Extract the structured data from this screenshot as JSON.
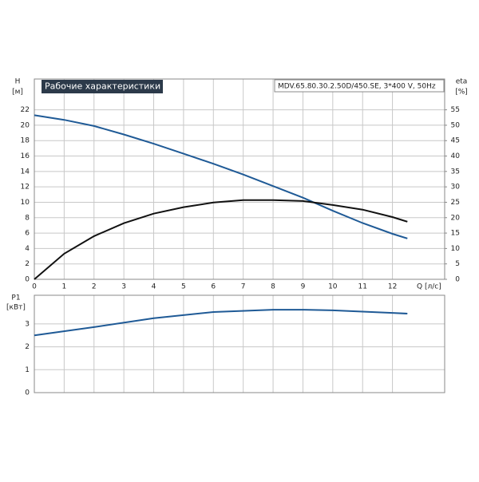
{
  "chart_data": [
    {
      "type": "line",
      "title": "Рабочие характеристики",
      "subtitle": "MDV.65.80.30.2.50D/450.SE, 3*400 V, 50Hz",
      "y_label": "H",
      "y_unit": "[м]",
      "y2_label": "eta",
      "y2_unit": "[%]",
      "x_label": "Q [л/с]",
      "x": [
        0,
        1,
        2,
        3,
        4,
        5,
        6,
        7,
        8,
        9,
        10,
        11,
        12,
        12.5
      ],
      "xlim": [
        0,
        13.75
      ],
      "xticks": [
        0,
        1,
        2,
        3,
        4,
        5,
        6,
        7,
        8,
        9,
        10,
        11,
        12
      ],
      "ylim": [
        0,
        26
      ],
      "yticks": [
        0,
        2,
        4,
        6,
        8,
        10,
        12,
        14,
        16,
        18,
        20,
        22
      ],
      "y2lim": [
        0,
        65
      ],
      "y2ticks": [
        0,
        5,
        10,
        15,
        20,
        25,
        30,
        35,
        40,
        45,
        50,
        55
      ],
      "grid": true,
      "series": [
        {
          "name": "H",
          "color": "#1f5a96",
          "values": [
            21.3,
            20.7,
            19.9,
            18.8,
            17.6,
            16.3,
            15,
            13.6,
            12.1,
            10.6,
            8.9,
            7.3,
            5.9,
            5.3
          ]
        },
        {
          "name": "eta",
          "color": "#111111",
          "axis": "y2",
          "values": [
            0,
            8.3,
            14,
            18.2,
            21.3,
            23.4,
            24.9,
            25.7,
            25.7,
            25.4,
            24.1,
            22.6,
            20.2,
            18.7
          ]
        }
      ]
    },
    {
      "type": "line",
      "y_label": "P1",
      "y_unit": "[кВт]",
      "x": [
        0,
        2,
        4,
        6,
        8,
        9,
        10,
        12,
        12.5
      ],
      "xlim": [
        0,
        13.75
      ],
      "ylim": [
        0,
        4.25
      ],
      "yticks": [
        0,
        1,
        2,
        3
      ],
      "grid": true,
      "series": [
        {
          "name": "P1",
          "color": "#1f5a96",
          "values": [
            2.5,
            2.86,
            3.25,
            3.52,
            3.62,
            3.62,
            3.59,
            3.48,
            3.45
          ]
        }
      ]
    }
  ]
}
